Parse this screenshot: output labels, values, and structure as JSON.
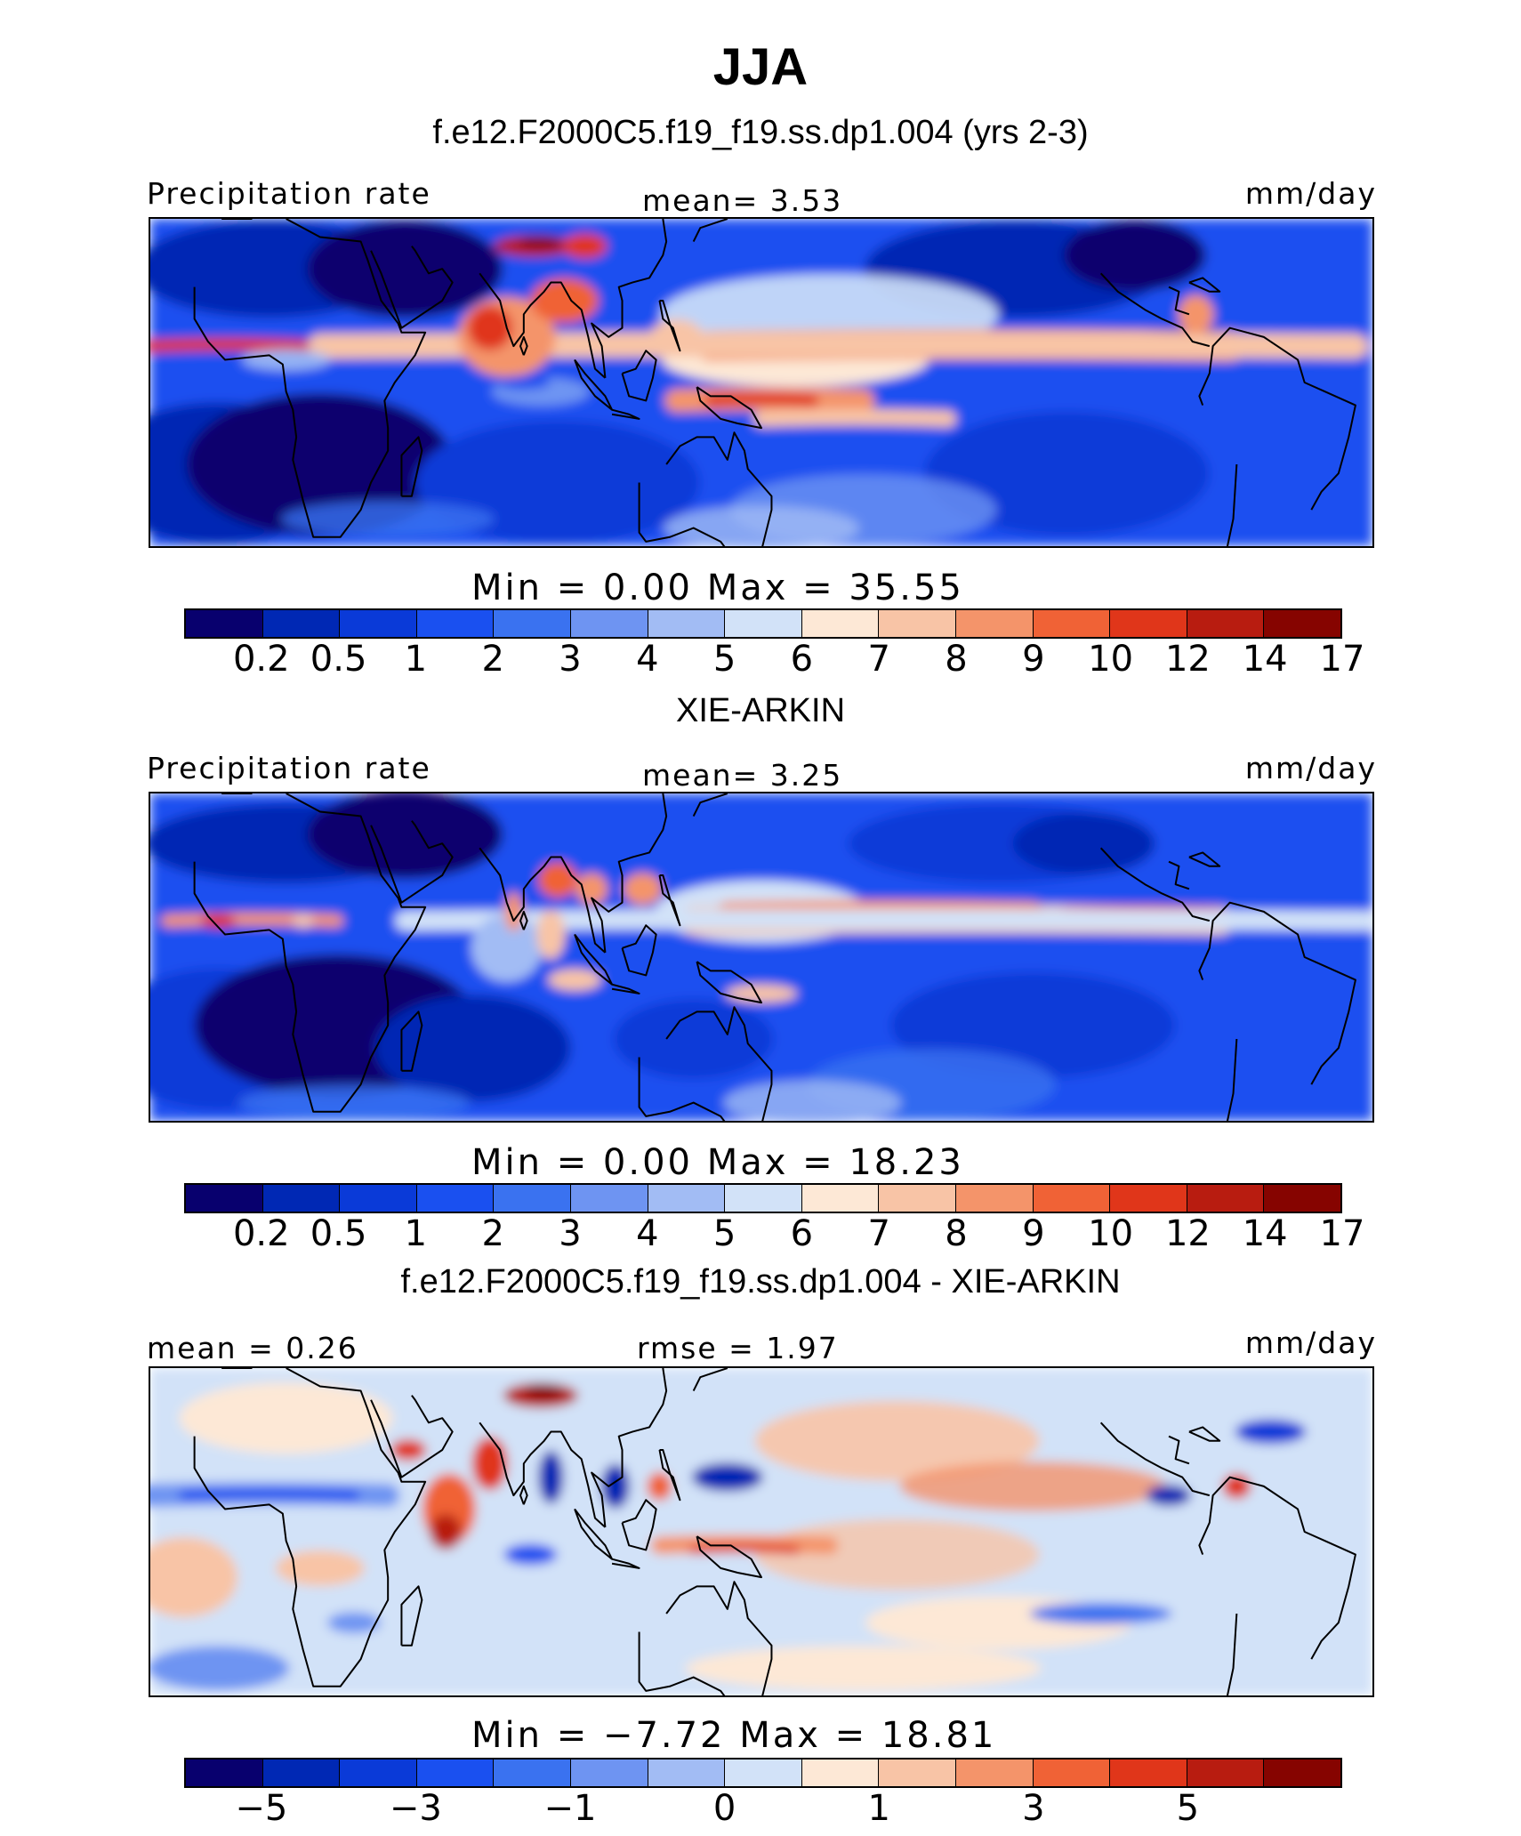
{
  "title": "JJA",
  "colors": [
    "#08006e",
    "#0028b4",
    "#0a3ad8",
    "#1a50f0",
    "#3a72f0",
    "#6e94f2",
    "#a2bcf4",
    "#d2e2f8",
    "#fde8d6",
    "#f8c4a6",
    "#f4946a",
    "#f06236",
    "#e0361a",
    "#b81c10",
    "#860400"
  ],
  "panels": [
    {
      "subtitle": "f.e12.F2000C5.f19_f19.ss.dp1.004 (yrs 2-3)",
      "left_label": "Precipitation rate",
      "center_label": "mean=    3.53",
      "right_label": "mm/day",
      "map_type": "model",
      "minmax": "Min  =    0.00  Max  =   35.55",
      "ticks": [
        "0.2",
        "0.5",
        "1",
        "2",
        "3",
        "4",
        "5",
        "6",
        "7",
        "8",
        "9",
        "10",
        "12",
        "14",
        "17"
      ]
    },
    {
      "subtitle": "XIE-ARKIN",
      "left_label": "Precipitation rate",
      "center_label": "mean=    3.25",
      "right_label": "mm/day",
      "map_type": "obs",
      "minmax": "Min  =    0.00  Max  =   18.23",
      "ticks": [
        "0.2",
        "0.5",
        "1",
        "2",
        "3",
        "4",
        "5",
        "6",
        "7",
        "8",
        "9",
        "10",
        "12",
        "14",
        "17"
      ]
    },
    {
      "subtitle": "f.e12.F2000C5.f19_f19.ss.dp1.004 - XIE-ARKIN",
      "left_label": "mean =    0.26",
      "center_label": "rmse =    1.97",
      "right_label": "mm/day",
      "map_type": "diff",
      "minmax": "Min  =   −7.72  Max  =   18.81",
      "ticks": [
        "−5",
        "",
        "−3",
        "",
        "−1",
        "",
        "0",
        "",
        "1",
        "",
        "3",
        "",
        "5",
        ""
      ]
    }
  ]
}
